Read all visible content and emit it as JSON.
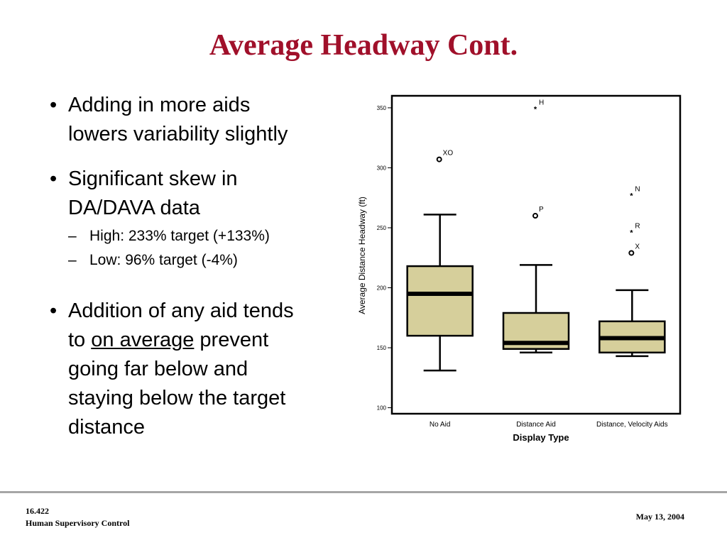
{
  "slide": {
    "title": "Average Headway Cont.",
    "bullets": [
      {
        "lines": [
          "Adding in more aids",
          "lowers variability slightly"
        ]
      },
      {
        "lines": [
          "Significant skew in",
          "DA/DAVA data"
        ],
        "subs": [
          "High: 233% target (+133%)",
          "Low: 96% target (-4%)"
        ]
      },
      {
        "l1": "Addition of any aid tends",
        "l2_pre": "to ",
        "l2_u": "on average",
        "l2_post": " prevent",
        "l3": "going far below and",
        "l4": "staying below the target",
        "l5": "distance"
      }
    ]
  },
  "footer": {
    "course": "16.422",
    "course_name": "Human Supervisory Control",
    "date": "May 13, 2004"
  },
  "chart_data": {
    "type": "boxplot",
    "xlabel": "Display Type",
    "ylabel": "Average Distance Headway (ft)",
    "ylim": [
      95,
      360
    ],
    "yticks": [
      100,
      150,
      200,
      250,
      300,
      350
    ],
    "box_fill": "#d6cf9b",
    "categories": [
      "No Aid",
      "Distance Aid",
      "Distance, Velocity Aids"
    ],
    "boxes": [
      {
        "whisker_low": 131,
        "q1": 160,
        "median": 195,
        "q3": 218,
        "whisker_high": 261,
        "outliers": [
          {
            "value": 307,
            "label": "XO",
            "marker": "circle"
          }
        ]
      },
      {
        "whisker_low": 146,
        "q1": 149,
        "median": 154,
        "q3": 179,
        "whisker_high": 219,
        "outliers": [
          {
            "value": 349,
            "label": "H",
            "marker": "star"
          },
          {
            "value": 260,
            "label": "P",
            "marker": "circle"
          }
        ]
      },
      {
        "whisker_low": 143,
        "q1": 146,
        "median": 158,
        "q3": 172,
        "whisker_high": 198,
        "outliers": [
          {
            "value": 277,
            "label": "N",
            "marker": "star"
          },
          {
            "value": 246,
            "label": "R",
            "marker": "star"
          },
          {
            "value": 229,
            "label": "X",
            "marker": "circle"
          }
        ]
      }
    ]
  }
}
